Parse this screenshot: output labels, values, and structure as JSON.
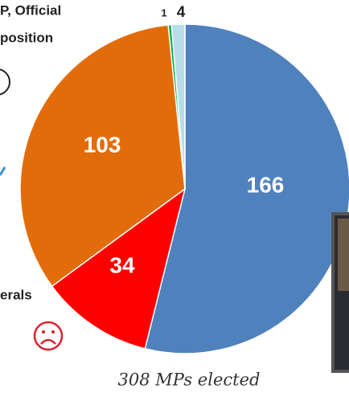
{
  "chart_data": {
    "type": "pie",
    "values": [
      166,
      34,
      103,
      1,
      4
    ],
    "colors": [
      "#4f81bd",
      "#ff0000",
      "#e36c0a",
      "#00b050",
      "#b7dde8"
    ],
    "annotations": [
      "P, Official",
      "position",
      "erals"
    ],
    "caption": "308 MPs elected"
  }
}
